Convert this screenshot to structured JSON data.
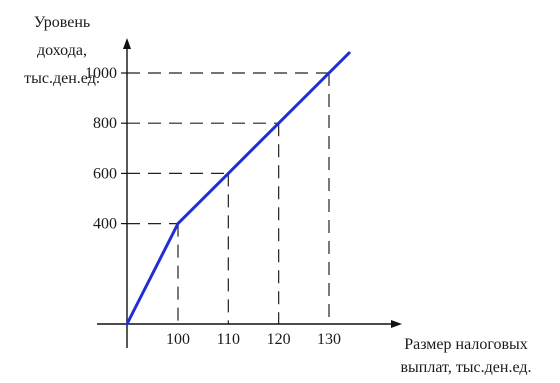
{
  "chart_data": {
    "type": "line",
    "title": "",
    "ylabel_lines": [
      "Уровень",
      "дохода,",
      "тыс.ден.ед."
    ],
    "xlabel_lines": [
      "Размер налоговых",
      "выплат, тыс.ден.ед."
    ],
    "x_ticks": [
      100,
      110,
      120,
      130
    ],
    "y_ticks": [
      400,
      600,
      800,
      1000
    ],
    "xlim": [
      80,
      135
    ],
    "ylim": [
      0,
      1200
    ],
    "series": [
      {
        "x": [
          80,
          100,
          110,
          120,
          130,
          134
        ],
        "y": [
          0,
          400,
          600,
          800,
          1000,
          1080
        ]
      }
    ],
    "guide_points": [
      {
        "x": 100,
        "y": 400
      },
      {
        "x": 110,
        "y": 600
      },
      {
        "x": 120,
        "y": 800
      },
      {
        "x": 130,
        "y": 1000
      }
    ],
    "grid": false,
    "legend": "none",
    "line_color": "#1f2fd6",
    "axis_color": "#111111",
    "guide_color": "#222222"
  }
}
